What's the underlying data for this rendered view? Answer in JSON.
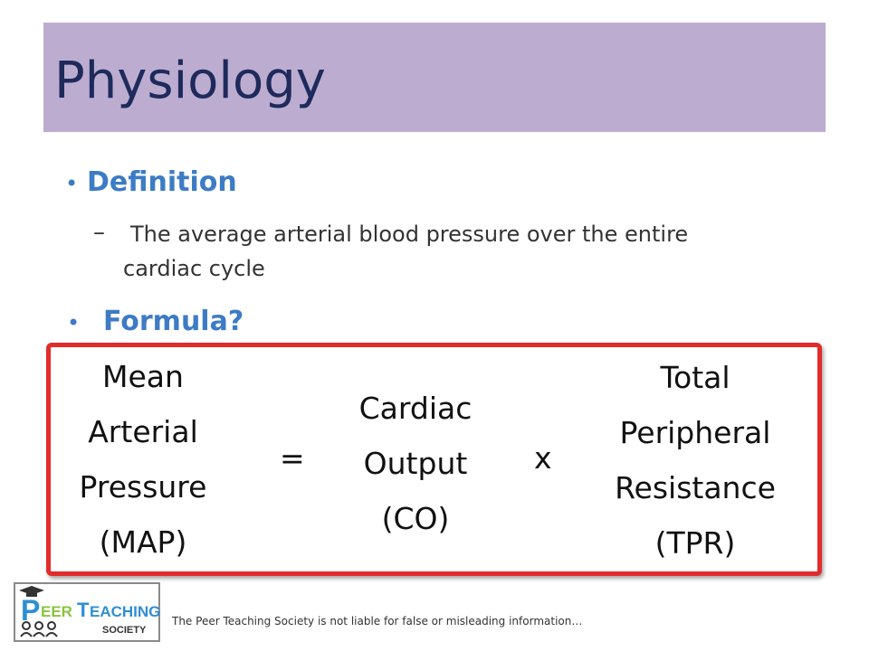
{
  "slide": {
    "title": "Physiology",
    "bullets": [
      {
        "label": "Definition"
      },
      {
        "label": "Formula?"
      }
    ],
    "definition_text": "The average arterial blood pressure over the entire cardiac cycle",
    "formula": {
      "lhs": [
        "Mean",
        "Arterial",
        "Pressure",
        "(MAP)"
      ],
      "equals": "=",
      "middle": [
        "Cardiac",
        "Output",
        "(CO)"
      ],
      "times": "x",
      "rhs": [
        "Total",
        "Peripheral",
        "Resistance",
        "(TPR)"
      ]
    }
  },
  "footer": {
    "logo_text": "PEER TEACHING SOCIETY",
    "disclaimer": "The Peer Teaching Society is not liable for false or misleading information…"
  },
  "colors": {
    "title_band": "#bcadd0",
    "title_text": "#1f2a5c",
    "bullet": "#3d7cc4",
    "formula_border": "#e22b2b"
  }
}
